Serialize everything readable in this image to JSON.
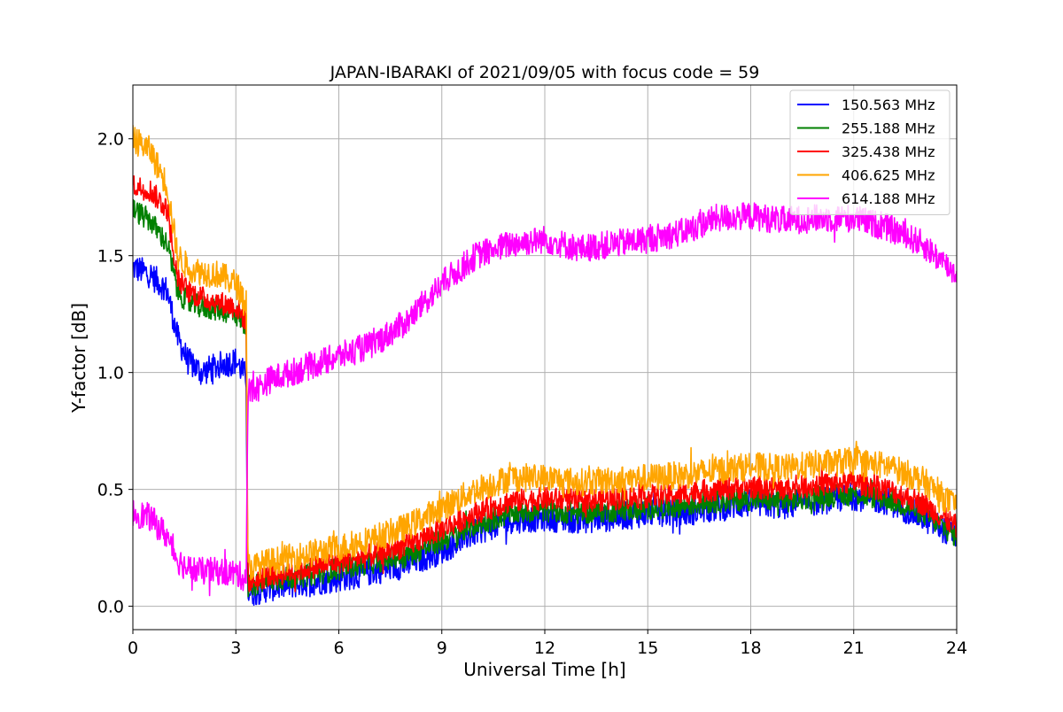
{
  "chart_data": {
    "type": "line",
    "title": "JAPAN-IBARAKI of 2021/09/05 with focus code = 59",
    "xlabel": "Universal Time [h]",
    "ylabel": "Y-factor [dB]",
    "xlim": [
      0,
      24
    ],
    "ylim": [
      -0.1,
      2.23
    ],
    "x_ticks": [
      0,
      3,
      6,
      9,
      12,
      15,
      18,
      21,
      24
    ],
    "y_ticks": [
      0.0,
      0.5,
      1.0,
      1.5,
      2.0
    ],
    "x_tick_labels": [
      "0",
      "3",
      "6",
      "9",
      "12",
      "15",
      "18",
      "21",
      "24"
    ],
    "y_tick_labels": [
      "0.0",
      "0.5",
      "1.0",
      "1.5",
      "2.0"
    ],
    "grid": true,
    "legend_position": "top-right",
    "series": [
      {
        "name": "150.563 MHz",
        "color": "#0000ff",
        "noise": 0.06,
        "x": [
          0,
          0.5,
          1.0,
          1.3,
          1.6,
          2.0,
          2.5,
          3.0,
          3.3,
          3.35,
          3.5,
          4.0,
          5.0,
          6.0,
          7.0,
          8.0,
          9.0,
          10.0,
          11.0,
          12.0,
          13.0,
          14.0,
          15.0,
          16.0,
          17.0,
          18.0,
          19.0,
          20.0,
          21.0,
          22.0,
          23.0,
          24.0
        ],
        "y": [
          1.45,
          1.42,
          1.35,
          1.15,
          1.05,
          1.0,
          1.03,
          1.05,
          0.98,
          0.06,
          0.06,
          0.08,
          0.1,
          0.12,
          0.15,
          0.18,
          0.24,
          0.32,
          0.37,
          0.38,
          0.37,
          0.38,
          0.4,
          0.4,
          0.42,
          0.44,
          0.43,
          0.45,
          0.47,
          0.45,
          0.38,
          0.3
        ]
      },
      {
        "name": "255.188 MHz",
        "color": "#008000",
        "noise": 0.05,
        "x": [
          0,
          0.5,
          1.0,
          1.3,
          1.6,
          2.0,
          2.5,
          3.0,
          3.3,
          3.35,
          3.5,
          4.0,
          5.0,
          6.0,
          7.0,
          8.0,
          9.0,
          10.0,
          11.0,
          12.0,
          13.0,
          14.0,
          15.0,
          16.0,
          17.0,
          18.0,
          19.0,
          20.0,
          21.0,
          22.0,
          23.0,
          24.0
        ],
        "y": [
          1.7,
          1.65,
          1.55,
          1.35,
          1.3,
          1.28,
          1.27,
          1.25,
          1.2,
          0.09,
          0.09,
          0.11,
          0.13,
          0.16,
          0.19,
          0.22,
          0.28,
          0.35,
          0.4,
          0.41,
          0.4,
          0.41,
          0.42,
          0.43,
          0.45,
          0.46,
          0.45,
          0.47,
          0.48,
          0.46,
          0.4,
          0.3
        ]
      },
      {
        "name": "325.438 MHz",
        "color": "#ff0000",
        "noise": 0.05,
        "x": [
          0,
          0.5,
          1.0,
          1.3,
          1.6,
          2.0,
          2.5,
          3.0,
          3.3,
          3.35,
          3.5,
          4.0,
          5.0,
          6.0,
          7.0,
          8.0,
          9.0,
          10.0,
          11.0,
          12.0,
          13.0,
          14.0,
          15.0,
          16.0,
          17.0,
          18.0,
          19.0,
          20.0,
          21.0,
          22.0,
          23.0,
          24.0
        ],
        "y": [
          1.8,
          1.78,
          1.7,
          1.4,
          1.35,
          1.32,
          1.3,
          1.28,
          1.22,
          0.11,
          0.11,
          0.13,
          0.16,
          0.19,
          0.22,
          0.26,
          0.33,
          0.4,
          0.45,
          0.46,
          0.45,
          0.46,
          0.47,
          0.48,
          0.5,
          0.51,
          0.5,
          0.52,
          0.53,
          0.5,
          0.44,
          0.34
        ]
      },
      {
        "name": "406.625 MHz",
        "color": "#ffa500",
        "noise": 0.06,
        "x": [
          0,
          0.5,
          1.0,
          1.3,
          1.6,
          2.0,
          2.5,
          3.0,
          3.3,
          3.35,
          3.5,
          4.0,
          5.0,
          6.0,
          7.0,
          8.0,
          9.0,
          10.0,
          11.0,
          12.0,
          13.0,
          14.0,
          15.0,
          16.0,
          17.0,
          18.0,
          19.0,
          20.0,
          21.0,
          22.0,
          23.0,
          24.0
        ],
        "y": [
          2.0,
          1.95,
          1.8,
          1.5,
          1.45,
          1.43,
          1.42,
          1.38,
          1.3,
          0.17,
          0.17,
          0.19,
          0.22,
          0.25,
          0.29,
          0.34,
          0.42,
          0.5,
          0.55,
          0.55,
          0.53,
          0.54,
          0.55,
          0.56,
          0.58,
          0.6,
          0.59,
          0.61,
          0.62,
          0.6,
          0.54,
          0.42
        ]
      },
      {
        "name": "614.188 MHz",
        "color": "#ff00ff",
        "noise": 0.06,
        "x": [
          0,
          0.5,
          1.0,
          1.3,
          1.6,
          2.0,
          2.5,
          3.0,
          3.3,
          3.35,
          3.5,
          4.0,
          5.0,
          6.0,
          7.0,
          8.0,
          9.0,
          10.0,
          11.0,
          12.0,
          13.0,
          14.0,
          15.0,
          16.0,
          17.0,
          18.0,
          19.0,
          20.0,
          21.0,
          22.0,
          23.0,
          24.0
        ],
        "y": [
          0.4,
          0.38,
          0.3,
          0.2,
          0.16,
          0.15,
          0.15,
          0.14,
          0.12,
          0.92,
          0.92,
          0.97,
          1.02,
          1.07,
          1.12,
          1.22,
          1.38,
          1.5,
          1.55,
          1.57,
          1.53,
          1.55,
          1.57,
          1.6,
          1.66,
          1.67,
          1.65,
          1.66,
          1.66,
          1.62,
          1.55,
          1.42
        ]
      }
    ]
  }
}
